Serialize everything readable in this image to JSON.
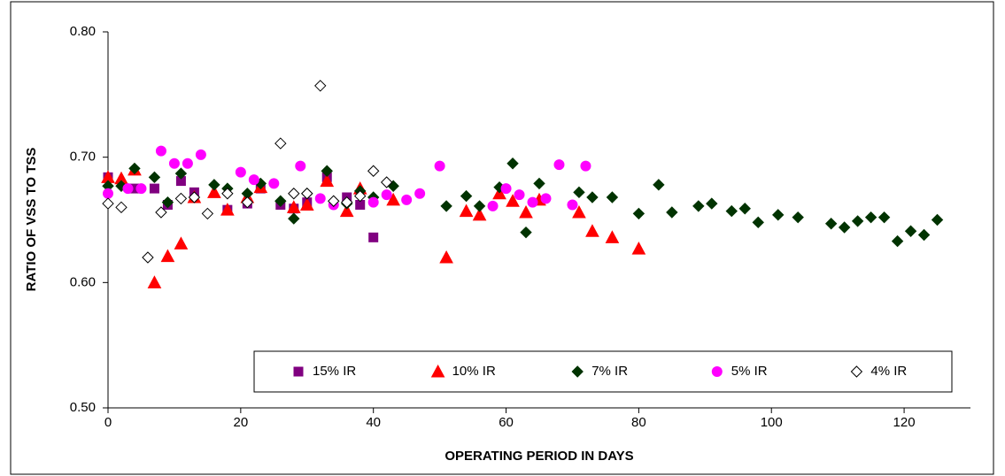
{
  "chart_data": {
    "type": "scatter",
    "xlabel": "OPERATING PERIOD IN DAYS",
    "ylabel": "RATIO OF VSS TO TSS",
    "xlim": [
      0,
      130
    ],
    "xticks": [
      0,
      20,
      40,
      60,
      80,
      100,
      120
    ],
    "ylim": [
      0.5,
      0.8
    ],
    "yticks": [
      {
        "value": 0.5,
        "label": "0.50"
      },
      {
        "value": 0.6,
        "label": "0.60"
      },
      {
        "value": 0.7,
        "label": "0.70"
      },
      {
        "value": 0.8,
        "label": "0.80"
      }
    ],
    "legend": "lower center",
    "series": [
      {
        "name": "15% IR",
        "color": "#800080",
        "marker": "square",
        "x": [
          0,
          4,
          7,
          9,
          11,
          13,
          18,
          21,
          23,
          26,
          28,
          30,
          33,
          36,
          38,
          40
        ],
        "values": [
          0.684,
          0.675,
          0.675,
          0.662,
          0.681,
          0.672,
          0.658,
          0.663,
          0.675,
          0.662,
          0.659,
          0.664,
          0.684,
          0.668,
          0.662,
          0.636
        ]
      },
      {
        "name": "10% IR",
        "color": "#ff0000",
        "marker": "triangle",
        "x": [
          0,
          2,
          4,
          7,
          9,
          11,
          13,
          16,
          18,
          21,
          23,
          28,
          30,
          33,
          36,
          38,
          43,
          51,
          54,
          56,
          59,
          61,
          63,
          65,
          71,
          73,
          76,
          80
        ],
        "values": [
          0.684,
          0.683,
          0.69,
          0.6,
          0.621,
          0.631,
          0.668,
          0.672,
          0.658,
          0.668,
          0.676,
          0.66,
          0.662,
          0.681,
          0.657,
          0.675,
          0.666,
          0.62,
          0.657,
          0.654,
          0.671,
          0.665,
          0.656,
          0.666,
          0.656,
          0.641,
          0.636,
          0.627
        ]
      },
      {
        "name": "7% IR",
        "color": "#003300",
        "marker": "diamond",
        "x": [
          0,
          2,
          4,
          7,
          9,
          11,
          16,
          18,
          21,
          23,
          26,
          28,
          30,
          33,
          36,
          38,
          40,
          43,
          51,
          54,
          56,
          59,
          61,
          63,
          65,
          71,
          73,
          76,
          80,
          83,
          85,
          89,
          91,
          94,
          96,
          98,
          101,
          104,
          109,
          111,
          113,
          115,
          117,
          119,
          121,
          123,
          125
        ],
        "values": [
          0.677,
          0.677,
          0.691,
          0.684,
          0.664,
          0.687,
          0.678,
          0.675,
          0.671,
          0.679,
          0.665,
          0.651,
          0.671,
          0.689,
          0.663,
          0.673,
          0.668,
          0.677,
          0.661,
          0.669,
          0.661,
          0.676,
          0.695,
          0.64,
          0.679,
          0.672,
          0.668,
          0.668,
          0.655,
          0.678,
          0.656,
          0.661,
          0.663,
          0.657,
          0.659,
          0.648,
          0.654,
          0.652,
          0.647,
          0.644,
          0.649,
          0.652,
          0.652,
          0.633,
          0.641,
          0.638,
          0.65
        ]
      },
      {
        "name": "5% IR",
        "color": "#ff00ff",
        "marker": "circle",
        "x": [
          0,
          3,
          5,
          8,
          10,
          12,
          14,
          20,
          22,
          25,
          29,
          32,
          34,
          40,
          42,
          45,
          47,
          50,
          58,
          60,
          62,
          64,
          66,
          68,
          70,
          72
        ],
        "values": [
          0.671,
          0.675,
          0.675,
          0.705,
          0.695,
          0.695,
          0.702,
          0.688,
          0.682,
          0.679,
          0.693,
          0.667,
          0.662,
          0.664,
          0.67,
          0.666,
          0.671,
          0.693,
          0.661,
          0.675,
          0.67,
          0.664,
          0.667,
          0.694,
          0.662,
          0.693
        ]
      },
      {
        "name": "4% IR",
        "color": "#ffffff",
        "edgecolor": "#000000",
        "marker": "diamond",
        "x": [
          0,
          2,
          6,
          8,
          11,
          13,
          15,
          18,
          21,
          26,
          28,
          30,
          32,
          34,
          36,
          38,
          40,
          42
        ],
        "values": [
          0.663,
          0.66,
          0.62,
          0.656,
          0.667,
          0.668,
          0.655,
          0.671,
          0.664,
          0.711,
          0.671,
          0.671,
          0.757,
          0.665,
          0.664,
          0.669,
          0.689,
          0.68
        ]
      }
    ]
  }
}
